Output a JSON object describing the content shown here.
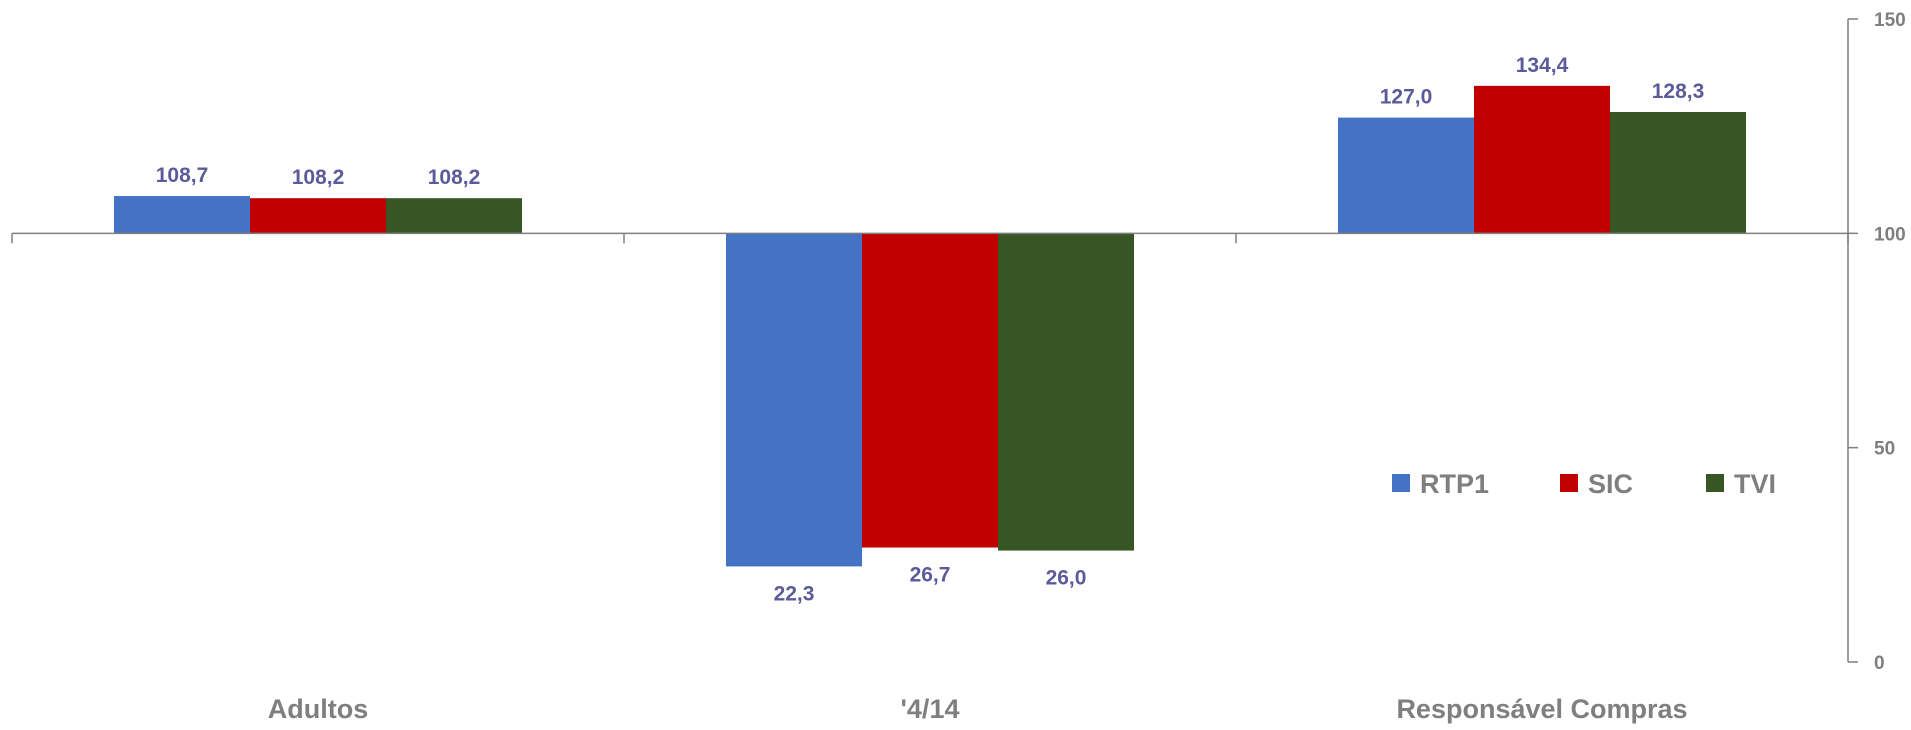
{
  "chart_data": {
    "type": "bar",
    "categories": [
      "Adultos",
      "'4/14",
      "Responsável Compras"
    ],
    "series": [
      {
        "name": "RTP1",
        "values": [
          108.7,
          22.3,
          127.0
        ],
        "labels": [
          "108,7",
          "22,3",
          "127,0"
        ],
        "color": "#4472C4"
      },
      {
        "name": "SIC",
        "values": [
          108.2,
          26.7,
          134.4
        ],
        "labels": [
          "108,2",
          "26,7",
          "134,4"
        ],
        "color": "#C00000"
      },
      {
        "name": "TVI",
        "values": [
          108.2,
          26.0,
          128.3
        ],
        "labels": [
          "108,2",
          "26,0",
          "128,3"
        ],
        "color": "#375623"
      }
    ],
    "baseline": 100,
    "ylim": [
      0,
      150
    ],
    "y_ticks": [
      0,
      50,
      100,
      150
    ],
    "y_tick_labels": [
      "0",
      "50",
      "100",
      "150"
    ],
    "y_axis_position": "right",
    "legend_position": "right-middle",
    "grid": false,
    "title": "",
    "xlabel": "",
    "ylabel": "",
    "colors": {
      "data_label": "#5B5B9A",
      "axis_text": "#7F7F7F",
      "axis_line": "#7F7F7F"
    }
  }
}
